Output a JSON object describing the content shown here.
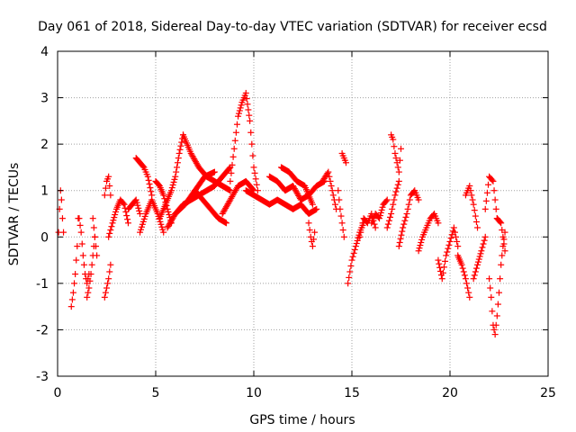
{
  "chart_data": {
    "type": "scatter",
    "title": "Day 061 of 2018, Sidereal Day-to-day VTEC variation (SDTVAR) for receiver ecsd",
    "xlabel": "GPS time / hours",
    "ylabel": "SDTVAR / TECUs",
    "xlim": [
      0,
      25
    ],
    "ylim": [
      -3,
      4
    ],
    "xticks": [
      0,
      5,
      10,
      15,
      20,
      25
    ],
    "yticks": [
      -3,
      -2,
      -1,
      0,
      1,
      2,
      3,
      4
    ],
    "grid": true,
    "marker": "+",
    "color": "#ff0000",
    "series": [
      {
        "name": "SDTVAR",
        "traces": [
          {
            "x": [
              0.05,
              0.1,
              0.15,
              0.2,
              0.25,
              0.3
            ],
            "y": [
              0.1,
              0.6,
              1.0,
              0.8,
              0.4,
              0.1
            ]
          },
          {
            "x": [
              0.7,
              0.8,
              0.9,
              1.0,
              1.05
            ],
            "y": [
              -1.5,
              -1.2,
              -0.8,
              -0.2,
              0.4
            ]
          },
          {
            "x": [
              1.1,
              1.2,
              1.3,
              1.4,
              1.5,
              1.6
            ],
            "y": [
              0.4,
              0.1,
              -0.4,
              -0.8,
              -1.0,
              -0.8
            ]
          },
          {
            "x": [
              1.5,
              1.6,
              1.7,
              1.8,
              1.9
            ],
            "y": [
              -1.3,
              -1.1,
              -0.8,
              -0.4,
              0.0
            ]
          },
          {
            "x": [
              1.8,
              1.9,
              2.0
            ],
            "y": [
              0.4,
              0.0,
              -0.4
            ]
          },
          {
            "x": [
              2.4,
              2.5,
              2.6,
              2.7
            ],
            "y": [
              -1.3,
              -1.1,
              -0.9,
              -0.6
            ]
          },
          {
            "x": [
              2.4,
              2.5,
              2.6,
              2.7
            ],
            "y": [
              0.9,
              1.2,
              1.3,
              0.9
            ]
          },
          {
            "x": [
              2.6,
              2.8,
              3.0,
              3.2,
              3.4,
              3.6
            ],
            "y": [
              0.0,
              0.3,
              0.6,
              0.8,
              0.7,
              0.3
            ]
          },
          {
            "x": [
              3.6,
              3.8,
              4.0,
              4.2
            ],
            "y": [
              0.6,
              0.7,
              0.8,
              0.5
            ]
          },
          {
            "x": [
              4.0,
              4.2,
              4.4,
              4.6,
              4.8
            ],
            "y": [
              1.7,
              1.6,
              1.5,
              1.3,
              0.9
            ]
          },
          {
            "x": [
              4.2,
              4.5,
              4.8,
              5.1,
              5.4
            ],
            "y": [
              0.1,
              0.5,
              0.8,
              0.5,
              0.1
            ]
          },
          {
            "x": [
              5.0,
              5.2,
              5.4,
              5.6,
              5.8
            ],
            "y": [
              1.2,
              1.1,
              0.9,
              0.6,
              0.3
            ]
          },
          {
            "x": [
              5.2,
              5.5,
              5.8,
              6.0,
              6.2,
              6.4
            ],
            "y": [
              0.4,
              0.7,
              1.0,
              1.3,
              1.8,
              2.2
            ]
          },
          {
            "x": [
              6.4,
              6.8,
              7.2,
              7.6,
              8.0,
              8.4,
              8.8
            ],
            "y": [
              2.2,
              1.8,
              1.5,
              1.3,
              1.2,
              1.1,
              1.0
            ]
          },
          {
            "x": [
              8.8,
              9.0,
              9.2,
              9.4,
              9.6,
              9.8,
              10.0,
              10.2
            ],
            "y": [
              1.2,
              1.9,
              2.6,
              2.9,
              3.1,
              2.5,
              1.5,
              1.0
            ]
          },
          {
            "x": [
              5.6,
              6.0,
              6.4,
              6.8,
              7.2,
              7.6,
              8.0,
              8.4,
              8.8
            ],
            "y": [
              0.2,
              0.5,
              0.7,
              0.8,
              0.9,
              1.0,
              1.1,
              1.3,
              1.5
            ]
          },
          {
            "x": [
              6.0,
              6.5,
              7.0,
              7.5,
              8.0
            ],
            "y": [
              0.5,
              0.7,
              1.0,
              1.3,
              1.4
            ]
          },
          {
            "x": [
              7.0,
              7.4,
              7.8,
              8.2,
              8.6
            ],
            "y": [
              1.0,
              0.8,
              0.6,
              0.4,
              0.3
            ]
          },
          {
            "x": [
              8.4,
              8.8,
              9.2,
              9.6,
              10.0
            ],
            "y": [
              0.5,
              0.8,
              1.1,
              1.2,
              1.0
            ]
          },
          {
            "x": [
              9.6,
              10.0,
              10.4,
              10.8,
              11.2,
              11.6,
              12.0,
              12.4,
              12.8,
              13.2
            ],
            "y": [
              1.0,
              0.9,
              0.8,
              0.7,
              0.8,
              0.7,
              0.6,
              0.7,
              0.5,
              0.6
            ]
          },
          {
            "x": [
              10.8,
              11.2,
              11.6,
              12.0,
              12.4,
              12.8,
              13.2,
              13.6
            ],
            "y": [
              1.3,
              1.2,
              1.0,
              1.1,
              0.8,
              0.9,
              1.1,
              1.2
            ]
          },
          {
            "x": [
              11.4,
              11.8,
              12.2,
              12.6,
              13.0
            ],
            "y": [
              1.5,
              1.4,
              1.2,
              1.1,
              0.7
            ]
          },
          {
            "x": [
              12.8,
              12.9,
              13.0,
              13.1
            ],
            "y": [
              0.3,
              0.0,
              -0.2,
              0.1
            ]
          },
          {
            "x": [
              13.5,
              13.8,
              14.0,
              14.2
            ],
            "y": [
              1.2,
              1.4,
              1.0,
              0.6
            ]
          },
          {
            "x": [
              14.3,
              14.4,
              14.5,
              14.6
            ],
            "y": [
              1.0,
              0.6,
              0.3,
              0.0
            ]
          },
          {
            "x": [
              14.5,
              14.6,
              14.7
            ],
            "y": [
              1.8,
              1.7,
              1.6
            ]
          },
          {
            "x": [
              14.8,
              15.0,
              15.2,
              15.4,
              15.6
            ],
            "y": [
              -1.0,
              -0.5,
              -0.2,
              0.1,
              0.3
            ]
          },
          {
            "x": [
              15.4,
              15.6,
              15.8,
              16.0,
              16.2
            ],
            "y": [
              0.0,
              0.4,
              0.3,
              0.5,
              0.2
            ]
          },
          {
            "x": [
              16.0,
              16.2,
              16.4,
              16.6,
              16.8
            ],
            "y": [
              0.3,
              0.5,
              0.4,
              0.7,
              0.8
            ]
          },
          {
            "x": [
              16.8,
              17.0,
              17.2,
              17.4
            ],
            "y": [
              0.2,
              0.5,
              0.9,
              1.2
            ]
          },
          {
            "x": [
              17.0,
              17.1,
              17.2,
              17.3,
              17.4,
              17.5
            ],
            "y": [
              2.2,
              2.1,
              1.8,
              1.6,
              1.4,
              1.9
            ]
          },
          {
            "x": [
              17.4,
              17.6,
              17.8,
              18.0,
              18.2,
              18.4
            ],
            "y": [
              -0.2,
              0.2,
              0.5,
              0.9,
              1.0,
              0.8
            ]
          },
          {
            "x": [
              18.4,
              18.6,
              18.8,
              19.0,
              19.2,
              19.4
            ],
            "y": [
              -0.3,
              0.0,
              0.2,
              0.4,
              0.5,
              0.3
            ]
          },
          {
            "x": [
              19.4,
              19.6,
              19.8,
              20.0,
              20.2,
              20.4
            ],
            "y": [
              -0.5,
              -0.9,
              -0.4,
              -0.1,
              0.2,
              -0.2
            ]
          },
          {
            "x": [
              20.4,
              20.6,
              20.8,
              21.0
            ],
            "y": [
              -0.4,
              -0.6,
              -0.9,
              -1.3
            ]
          },
          {
            "x": [
              20.8,
              21.0,
              21.2,
              21.4
            ],
            "y": [
              0.9,
              1.1,
              0.7,
              0.2
            ]
          },
          {
            "x": [
              21.2,
              21.4,
              21.6,
              21.8
            ],
            "y": [
              -0.9,
              -0.6,
              -0.3,
              0.0
            ]
          },
          {
            "x": [
              21.8,
              22.0,
              22.2,
              22.4
            ],
            "y": [
              0.6,
              1.3,
              1.2,
              0.4
            ]
          },
          {
            "x": [
              22.0,
              22.1,
              22.2,
              22.3,
              22.4,
              22.5,
              22.6,
              22.7,
              22.8
            ],
            "y": [
              -0.9,
              -1.3,
              -1.9,
              -2.1,
              -1.7,
              -1.2,
              -0.6,
              -0.2,
              0.1
            ]
          },
          {
            "x": [
              22.4,
              22.6,
              22.8
            ],
            "y": [
              0.4,
              0.3,
              -0.3
            ]
          }
        ]
      }
    ]
  }
}
